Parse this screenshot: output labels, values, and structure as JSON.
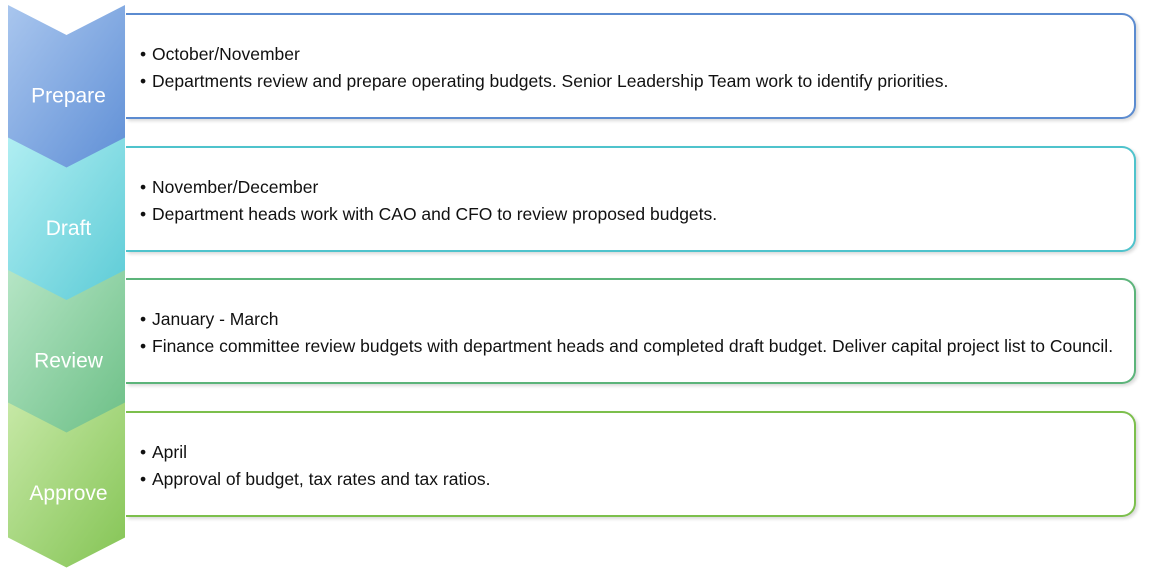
{
  "steps": [
    {
      "label": "Prepare",
      "items": [
        "October/November",
        "Departments review and prepare operating budgets. Senior Leadership Team work to identify priorities."
      ]
    },
    {
      "label": "Draft",
      "items": [
        "November/December",
        "Department heads work with CAO and CFO to review proposed budgets."
      ]
    },
    {
      "label": "Review",
      "items": [
        "January - March",
        "Finance committee review budgets with department heads and completed draft budget. Deliver capital project list to Council."
      ]
    },
    {
      "label": "Approve",
      "items": [
        "April",
        "Approval of budget, tax rates and tax ratios."
      ]
    }
  ]
}
